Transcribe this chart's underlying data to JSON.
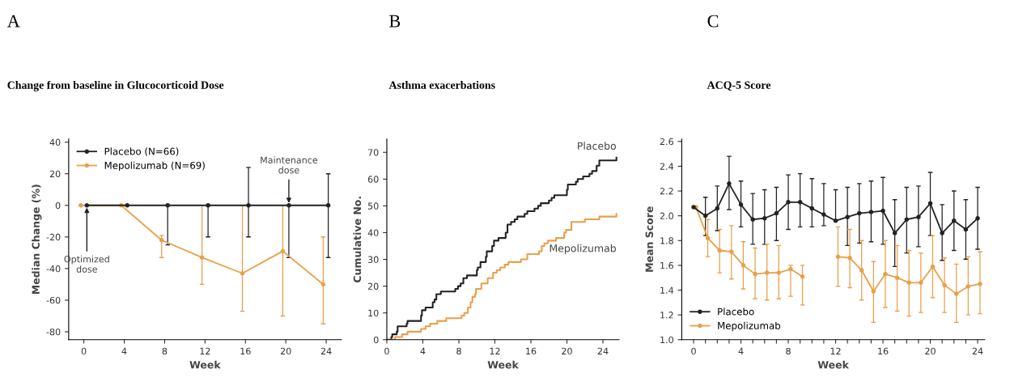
{
  "chart_data": [
    {
      "type": "line",
      "title": "Change from baseline in Glucocorticoid Dose",
      "subtitle": "A",
      "xlabel": "Week",
      "ylabel": "Median Change (%)",
      "xlim": [
        -1.5,
        25.5
      ],
      "ylim": [
        -85,
        42
      ],
      "xticks": [
        0,
        4,
        8,
        12,
        16,
        20,
        24
      ],
      "yticks": [
        -80,
        -60,
        -40,
        -20,
        0,
        20,
        40
      ],
      "marker": "circle",
      "legend": "top left",
      "grid": false,
      "series": [
        {
          "name": "Placebo (N=66)",
          "color": "#222222",
          "x": [
            0.3,
            4.3,
            8.3,
            12.3,
            16.3,
            20.3,
            24.2
          ],
          "values": [
            0,
            0,
            0,
            0,
            0,
            0,
            0
          ],
          "errors": [
            null,
            null,
            [
              -25,
              0
            ],
            [
              -20,
              0
            ],
            [
              -20,
              24
            ],
            [
              -33,
              0
            ],
            [
              -33,
              20
            ]
          ]
        },
        {
          "name": "Mepolizumab (N=69)",
          "color": "#e8a04a",
          "x": [
            -0.3,
            3.7,
            7.7,
            11.7,
            15.7,
            19.7,
            23.7
          ],
          "values": [
            0,
            0,
            -22,
            -33,
            -43,
            -29,
            -50
          ],
          "errors": [
            null,
            null,
            [
              -33,
              -19
            ],
            [
              -50,
              0
            ],
            [
              -67,
              0
            ],
            [
              -70,
              0
            ],
            [
              -75,
              -20
            ]
          ]
        }
      ],
      "annotations": [
        {
          "text": "Optimized\ndose",
          "x": 0.3,
          "y": 0
        },
        {
          "text": "Maintenance\ndose",
          "x": 20.3,
          "y": 0
        }
      ]
    },
    {
      "type": "step",
      "title": "Asthma exacerbations",
      "subtitle": "B",
      "xlabel": "Week",
      "ylabel": "Cumulative No.",
      "xlim": [
        0,
        25.8
      ],
      "ylim": [
        0,
        75
      ],
      "xticks": [
        0,
        4,
        8,
        12,
        16,
        20,
        24
      ],
      "yticks": [
        0,
        10,
        20,
        30,
        40,
        50,
        60,
        70
      ],
      "marker": "none",
      "legend": false,
      "grid": false,
      "series": [
        {
          "name": "Placebo",
          "color": "#222222",
          "x": [
            0,
            0.5,
            0.6,
            1.1,
            1.2,
            2.2,
            2.3,
            3.8,
            3.9,
            4.3,
            5.1,
            5.3,
            5.5,
            6.0,
            7.6,
            7.9,
            8.2,
            8.5,
            8.9,
            10.0,
            10.1,
            10.4,
            11.0,
            11.1,
            11.7,
            11.9,
            12.4,
            13.2,
            13.4,
            13.8,
            14.2,
            14.5,
            15.3,
            15.6,
            16.4,
            16.8,
            17.1,
            18.0,
            18.3,
            18.6,
            20.0,
            20.1,
            21.0,
            21.2,
            21.8,
            22.5,
            22.8,
            23.3,
            23.6,
            25.5
          ],
          "values": [
            0,
            1,
            2,
            3,
            5,
            6,
            7,
            9,
            11,
            12,
            14,
            15,
            17,
            18,
            19,
            20,
            21,
            23,
            24,
            26,
            27,
            29,
            31,
            33,
            35,
            37,
            38,
            40,
            43,
            44,
            45,
            46,
            47,
            48,
            49,
            50,
            51,
            52,
            53,
            54,
            56,
            58,
            59,
            60,
            61,
            62,
            63,
            65,
            67,
            68
          ]
        },
        {
          "name": "Mepolizumab",
          "color": "#e8a04a",
          "x": [
            0,
            0.9,
            1.7,
            2.3,
            3.8,
            4.3,
            4.8,
            5.6,
            6.6,
            8.3,
            8.6,
            9.0,
            9.3,
            9.5,
            9.8,
            9.9,
            10.5,
            11.2,
            11.8,
            12.2,
            12.6,
            13.1,
            13.5,
            14.9,
            15.6,
            16.9,
            17.2,
            17.5,
            17.9,
            18.8,
            19.7,
            19.9,
            20.5,
            22.0,
            23.6,
            25.5
          ],
          "values": [
            0,
            1,
            2,
            3,
            4,
            5,
            6,
            7,
            8,
            9,
            10,
            12,
            14,
            16,
            17,
            19,
            21,
            23,
            25,
            26,
            27,
            28,
            29,
            30,
            32,
            33,
            35,
            36,
            37,
            38,
            40,
            41,
            44,
            45,
            46,
            47
          ]
        }
      ]
    },
    {
      "type": "line",
      "title": "ACQ-5 Score",
      "subtitle": "C",
      "xlabel": "Week",
      "ylabel": "Mean Score",
      "xlim": [
        -1,
        24.6
      ],
      "ylim": [
        1.0,
        2.62
      ],
      "xticks": [
        0,
        {
          "value": 1,
          "label": null
        },
        {
          "value": 2,
          "label": null
        },
        {
          "value": 3,
          "label": null
        },
        4,
        {
          "value": 5,
          "label": null
        },
        {
          "value": 6,
          "label": null
        },
        {
          "value": 7,
          "label": null
        },
        8,
        {
          "value": 9,
          "label": null
        },
        {
          "value": 10,
          "label": null
        },
        {
          "value": 11,
          "label": null
        },
        12,
        {
          "value": 13,
          "label": null
        },
        {
          "value": 14,
          "label": null
        },
        {
          "value": 15,
          "label": null
        },
        16,
        {
          "value": 17,
          "label": null
        },
        {
          "value": 18,
          "label": null
        },
        {
          "value": 19,
          "label": null
        },
        20,
        {
          "value": 21,
          "label": null
        },
        {
          "value": 22,
          "label": null
        },
        {
          "value": 23,
          "label": null
        },
        24
      ],
      "yticks": [
        {
          "value": 1.0,
          "label": "1.0"
        },
        {
          "value": 1.2,
          "label": "1.2"
        },
        {
          "value": 1.4,
          "label": "1.4"
        },
        {
          "value": 1.6,
          "label": "1.6"
        },
        {
          "value": 1.8,
          "label": "1.8"
        },
        {
          "value": 2.0,
          "label": "2.0"
        },
        {
          "value": 2.2,
          "label": "2.2"
        },
        {
          "value": 2.4,
          "label": "2.4"
        },
        {
          "value": 2.6,
          "label": "2.6"
        }
      ],
      "marker": "circle",
      "legend": "bottom left",
      "grid": false,
      "series": [
        {
          "name": "Placebo",
          "color": "#222222",
          "x": [
            0,
            1,
            2,
            3,
            4,
            5,
            6,
            7,
            8,
            9,
            10,
            11,
            12,
            13,
            14,
            15,
            16,
            17,
            18,
            19,
            20,
            21,
            22,
            23,
            24
          ],
          "values": [
            2.07,
            2.0,
            2.06,
            2.26,
            2.09,
            1.97,
            1.98,
            2.02,
            2.11,
            2.11,
            2.06,
            2.01,
            1.96,
            1.99,
            2.02,
            2.03,
            2.04,
            1.86,
            1.97,
            1.99,
            2.1,
            1.86,
            1.96,
            1.89,
            1.98
          ],
          "errors": [
            null,
            [
              1.84,
              2.15
            ],
            [
              1.88,
              2.24
            ],
            [
              2.05,
              2.48
            ],
            [
              1.91,
              2.28
            ],
            [
              1.77,
              2.18
            ],
            [
              1.77,
              2.21
            ],
            [
              1.8,
              2.23
            ],
            [
              1.89,
              2.33
            ],
            [
              1.91,
              2.34
            ],
            [
              1.91,
              2.3
            ],
            [
              1.92,
              2.26
            ],
            [
              1.96,
              2.21
            ],
            [
              1.76,
              2.23
            ],
            [
              1.78,
              2.26
            ],
            [
              1.79,
              2.28
            ],
            [
              1.77,
              2.31
            ],
            [
              1.59,
              2.13
            ],
            [
              1.7,
              2.23
            ],
            [
              1.75,
              2.24
            ],
            [
              1.84,
              2.35
            ],
            [
              1.64,
              2.09
            ],
            [
              1.72,
              2.2
            ],
            [
              1.65,
              2.13
            ],
            [
              1.73,
              2.23
            ]
          ]
        },
        {
          "name": "Mepolizumab",
          "color": "#e8a04a",
          "x": [
            0.2,
            1.2,
            2.2,
            3.2,
            4.2,
            5.2,
            6.2,
            7.2,
            8.2,
            9.2,
            10.2,
            11.2,
            12.2,
            13.2,
            14.2,
            15.2,
            16.2,
            17.2,
            18.2,
            19.2,
            20.2,
            21.2,
            22.2,
            23.2,
            24.2
          ],
          "values": [
            2.07,
            1.82,
            1.72,
            1.71,
            1.6,
            1.53,
            1.54,
            1.54,
            1.57,
            1.51,
            null,
            null,
            1.67,
            1.66,
            1.56,
            1.39,
            1.53,
            1.5,
            1.46,
            1.46,
            1.59,
            1.44,
            1.37,
            1.43,
            1.45
          ],
          "errors": [
            null,
            [
              1.67,
              1.97
            ],
            [
              1.54,
              1.89
            ],
            [
              1.49,
              1.92
            ],
            [
              1.41,
              1.79
            ],
            [
              1.33,
              1.74
            ],
            [
              1.32,
              1.77
            ],
            [
              1.33,
              1.76
            ],
            [
              1.35,
              1.6
            ],
            [
              1.28,
              1.6
            ],
            null,
            null,
            [
              1.43,
              1.91
            ],
            [
              1.42,
              1.89
            ],
            [
              1.32,
              1.8
            ],
            [
              1.14,
              1.63
            ],
            [
              1.26,
              1.8
            ],
            [
              1.23,
              1.76
            ],
            [
              1.19,
              1.72
            ],
            [
              1.22,
              1.7
            ],
            [
              1.34,
              1.84
            ],
            [
              1.22,
              1.66
            ],
            [
              1.14,
              1.61
            ],
            [
              1.2,
              1.67
            ],
            [
              1.21,
              1.71
            ]
          ]
        }
      ]
    }
  ]
}
